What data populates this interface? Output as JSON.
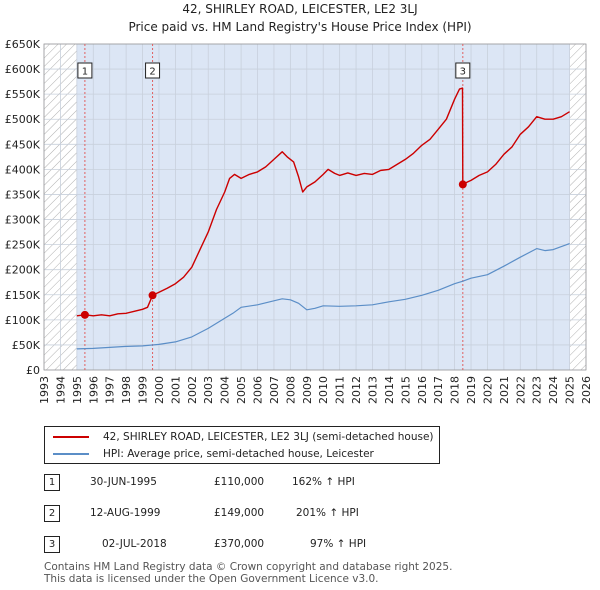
{
  "title": "42, SHIRLEY ROAD, LEICESTER, LE2 3LJ",
  "subtitle": "Price paid vs. HM Land Registry's House Price Index (HPI)",
  "colors": {
    "property": "#cc0000",
    "hpi": "#5b8ec7",
    "shade": "#dce6f5",
    "grid": "#c8d0dc",
    "vline": "#e06060"
  },
  "chart_data": {
    "type": "line",
    "title": "42, SHIRLEY ROAD, LEICESTER, LE2 3LJ",
    "subtitle": "Price paid vs. HM Land Registry's House Price Index (HPI)",
    "xlim": [
      1993,
      2026
    ],
    "ylim": [
      0,
      650000
    ],
    "x_ticks": [
      "1993",
      "1994",
      "1995",
      "1996",
      "1997",
      "1998",
      "1999",
      "2000",
      "2001",
      "2002",
      "2003",
      "2004",
      "2005",
      "2006",
      "2007",
      "2008",
      "2009",
      "2010",
      "2011",
      "2012",
      "2013",
      "2014",
      "2015",
      "2016",
      "2017",
      "2018",
      "2019",
      "2020",
      "2021",
      "2022",
      "2023",
      "2024",
      "2025",
      "2026"
    ],
    "y_ticks": [
      {
        "value": 0,
        "label": "£0"
      },
      {
        "value": 50000,
        "label": "£50K"
      },
      {
        "value": 100000,
        "label": "£100K"
      },
      {
        "value": 150000,
        "label": "£150K"
      },
      {
        "value": 200000,
        "label": "£200K"
      },
      {
        "value": 250000,
        "label": "£250K"
      },
      {
        "value": 300000,
        "label": "£300K"
      },
      {
        "value": 350000,
        "label": "£350K"
      },
      {
        "value": 400000,
        "label": "£400K"
      },
      {
        "value": 450000,
        "label": "£450K"
      },
      {
        "value": 500000,
        "label": "£500K"
      },
      {
        "value": 550000,
        "label": "£550K"
      },
      {
        "value": 600000,
        "label": "£600K"
      },
      {
        "value": 650000,
        "label": "£650K"
      }
    ],
    "hatched_ranges": [
      [
        1993,
        1995.0
      ],
      [
        2025.0,
        2026
      ]
    ],
    "shaded_ranges": [
      [
        1995.0,
        2025.0
      ]
    ],
    "series": [
      {
        "name": "42, SHIRLEY ROAD, LEICESTER, LE2 3LJ (semi-detached house)",
        "points": [
          [
            1995.0,
            108000
          ],
          [
            1995.49,
            110000
          ],
          [
            1996.0,
            108000
          ],
          [
            1996.5,
            110000
          ],
          [
            1997.0,
            108000
          ],
          [
            1997.5,
            112000
          ],
          [
            1998.0,
            113000
          ],
          [
            1998.5,
            117000
          ],
          [
            1999.0,
            121000
          ],
          [
            1999.3,
            125000
          ],
          [
            1999.61,
            149000
          ],
          [
            2000.0,
            155000
          ],
          [
            2000.5,
            163000
          ],
          [
            2001.0,
            172000
          ],
          [
            2001.5,
            185000
          ],
          [
            2002.0,
            205000
          ],
          [
            2002.5,
            240000
          ],
          [
            2003.0,
            275000
          ],
          [
            2003.5,
            320000
          ],
          [
            2004.0,
            355000
          ],
          [
            2004.3,
            382000
          ],
          [
            2004.6,
            390000
          ],
          [
            2005.0,
            382000
          ],
          [
            2005.5,
            390000
          ],
          [
            2006.0,
            395000
          ],
          [
            2006.5,
            405000
          ],
          [
            2007.0,
            420000
          ],
          [
            2007.5,
            435000
          ],
          [
            2007.8,
            425000
          ],
          [
            2008.2,
            415000
          ],
          [
            2008.5,
            385000
          ],
          [
            2008.75,
            355000
          ],
          [
            2009.0,
            365000
          ],
          [
            2009.5,
            375000
          ],
          [
            2010.0,
            390000
          ],
          [
            2010.3,
            400000
          ],
          [
            2010.7,
            392000
          ],
          [
            2011.0,
            388000
          ],
          [
            2011.5,
            393000
          ],
          [
            2012.0,
            388000
          ],
          [
            2012.5,
            392000
          ],
          [
            2013.0,
            390000
          ],
          [
            2013.5,
            398000
          ],
          [
            2014.0,
            400000
          ],
          [
            2014.5,
            410000
          ],
          [
            2015.0,
            420000
          ],
          [
            2015.5,
            432000
          ],
          [
            2016.0,
            448000
          ],
          [
            2016.5,
            460000
          ],
          [
            2017.0,
            480000
          ],
          [
            2017.5,
            500000
          ],
          [
            2018.0,
            540000
          ],
          [
            2018.3,
            560000
          ],
          [
            2018.48,
            562000
          ],
          [
            2018.5,
            370000
          ],
          [
            2018.8,
            375000
          ],
          [
            2019.0,
            378000
          ],
          [
            2019.5,
            388000
          ],
          [
            2020.0,
            395000
          ],
          [
            2020.5,
            410000
          ],
          [
            2021.0,
            430000
          ],
          [
            2021.5,
            445000
          ],
          [
            2022.0,
            470000
          ],
          [
            2022.5,
            485000
          ],
          [
            2023.0,
            505000
          ],
          [
            2023.5,
            500000
          ],
          [
            2024.0,
            500000
          ],
          [
            2024.5,
            505000
          ],
          [
            2025.0,
            515000
          ]
        ]
      },
      {
        "name": "HPI: Average price, semi-detached house, Leicester",
        "points": [
          [
            1995.0,
            42000
          ],
          [
            1996.0,
            43000
          ],
          [
            1997.0,
            45000
          ],
          [
            1998.0,
            47000
          ],
          [
            1999.0,
            48000
          ],
          [
            2000.0,
            51000
          ],
          [
            2001.0,
            56000
          ],
          [
            2002.0,
            66000
          ],
          [
            2003.0,
            83000
          ],
          [
            2004.0,
            103000
          ],
          [
            2004.5,
            113000
          ],
          [
            2005.0,
            125000
          ],
          [
            2006.0,
            130000
          ],
          [
            2007.0,
            138000
          ],
          [
            2007.5,
            142000
          ],
          [
            2008.0,
            140000
          ],
          [
            2008.5,
            133000
          ],
          [
            2009.0,
            120000
          ],
          [
            2009.5,
            123000
          ],
          [
            2010.0,
            128000
          ],
          [
            2011.0,
            127000
          ],
          [
            2012.0,
            128000
          ],
          [
            2013.0,
            130000
          ],
          [
            2014.0,
            136000
          ],
          [
            2015.0,
            141000
          ],
          [
            2016.0,
            149000
          ],
          [
            2017.0,
            159000
          ],
          [
            2018.0,
            172000
          ],
          [
            2018.5,
            177000
          ],
          [
            2019.0,
            183000
          ],
          [
            2020.0,
            190000
          ],
          [
            2021.0,
            207000
          ],
          [
            2022.0,
            225000
          ],
          [
            2023.0,
            242000
          ],
          [
            2023.5,
            238000
          ],
          [
            2024.0,
            240000
          ],
          [
            2025.0,
            252000
          ]
        ]
      }
    ],
    "sales": [
      {
        "number": "1",
        "date": "30-JUN-1995",
        "year": 1995.49,
        "price": 110000,
        "price_label": "£110,000",
        "hpi": "162% ↑ HPI"
      },
      {
        "number": "2",
        "date": "12-AUG-1999",
        "year": 1999.61,
        "price": 149000,
        "price_label": "£149,000",
        "hpi": "201% ↑ HPI"
      },
      {
        "number": "3",
        "date": "02-JUL-2018",
        "year": 2018.5,
        "price": 370000,
        "price_label": "£370,000",
        "hpi": "97% ↑ HPI"
      }
    ],
    "legend_position": "below"
  },
  "legend": {
    "property_label": "42, SHIRLEY ROAD, LEICESTER, LE2 3LJ (semi-detached house)",
    "hpi_label": "HPI: Average price, semi-detached house, Leicester"
  },
  "footer": {
    "line1": "Contains HM Land Registry data © Crown copyright and database right 2025.",
    "line2": "This data is licensed under the Open Government Licence v3.0."
  }
}
